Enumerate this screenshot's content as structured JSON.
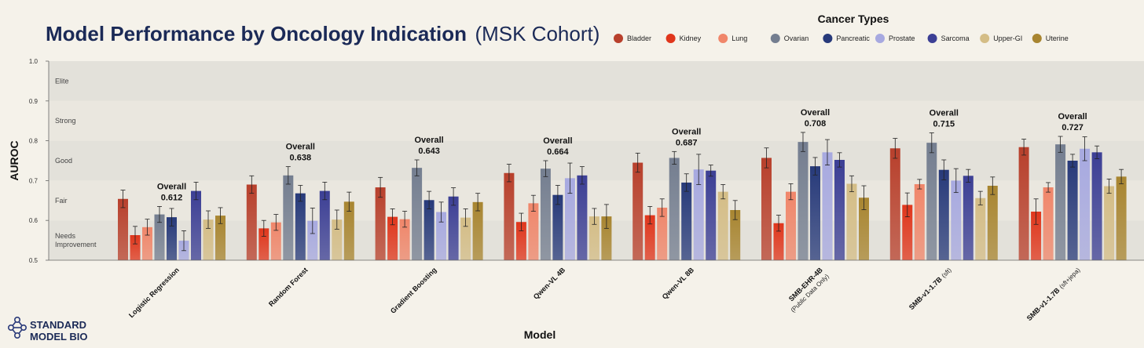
{
  "title": {
    "main": "Model Performance by Oncology Indication",
    "sub": "(MSK Cohort)"
  },
  "legend": {
    "title": "Cancer Types"
  },
  "logo": {
    "line1": "STANDARD",
    "line2": "MODEL BIO"
  },
  "chart_data": {
    "type": "bar",
    "xlabel": "Model",
    "ylabel": "AUROC",
    "ylim": [
      0.5,
      1.0
    ],
    "yticks": [
      "0.5",
      "0.6",
      "0.7",
      "0.8",
      "0.9",
      "1.0"
    ],
    "bands": [
      {
        "label": "Elite",
        "from": 0.9,
        "to": 1.0,
        "color": "#e3e1da"
      },
      {
        "label": "Strong",
        "from": 0.8,
        "to": 0.9,
        "color": "#eae7df"
      },
      {
        "label": "Good",
        "from": 0.7,
        "to": 0.8,
        "color": "#e3e1da"
      },
      {
        "label": "Fair",
        "from": 0.6,
        "to": 0.7,
        "color": "#eae7df"
      },
      {
        "label": "Needs Improvement",
        "label_lines": [
          "Needs",
          "Improvement"
        ],
        "from": 0.5,
        "to": 0.6,
        "color": "#e3e1da"
      }
    ],
    "overall_label": "Overall",
    "categories": [
      {
        "name": "Logistic Regression",
        "sub": "",
        "overall": "0.612"
      },
      {
        "name": "Random Forest",
        "sub": "",
        "overall": "0.638"
      },
      {
        "name": "Gradient Boosting",
        "sub": "",
        "overall": "0.643"
      },
      {
        "name": "Qwen-VL 4B",
        "sub": "",
        "overall": "0.664"
      },
      {
        "name": "Qwen-VL 8B",
        "sub": "",
        "overall": "0.687"
      },
      {
        "name": "SMB-EHR-4B",
        "sub": "(Public Data Only)",
        "overall": "0.708"
      },
      {
        "name": "SMB-v1-1.7B",
        "sub": "(sft)",
        "overall": "0.715"
      },
      {
        "name": "SMB-v1-1.7B",
        "sub": "(sft+jepa)",
        "overall": "0.727"
      }
    ],
    "series": [
      {
        "name": "Bladder",
        "color": "#b8402c",
        "values": [
          0.654,
          0.69,
          0.683,
          0.719,
          0.745,
          0.757,
          0.781,
          0.784
        ],
        "errors": [
          0.022,
          0.022,
          0.025,
          0.022,
          0.024,
          0.025,
          0.025,
          0.02
        ]
      },
      {
        "name": "Kidney",
        "color": "#e0361c",
        "values": [
          0.563,
          0.58,
          0.609,
          0.596,
          0.613,
          0.593,
          0.639,
          0.622
        ],
        "errors": [
          0.022,
          0.02,
          0.02,
          0.022,
          0.022,
          0.02,
          0.03,
          0.032
        ]
      },
      {
        "name": "Lung",
        "color": "#f0866a",
        "values": [
          0.583,
          0.595,
          0.603,
          0.643,
          0.632,
          0.672,
          0.691,
          0.683
        ],
        "errors": [
          0.02,
          0.02,
          0.02,
          0.02,
          0.022,
          0.02,
          0.012,
          0.012
        ]
      },
      {
        "name": "Ovarian",
        "color": "#747e90",
        "values": [
          0.615,
          0.713,
          0.732,
          0.73,
          0.757,
          0.797,
          0.795,
          0.791
        ],
        "errors": [
          0.02,
          0.022,
          0.02,
          0.02,
          0.016,
          0.024,
          0.025,
          0.02
        ]
      },
      {
        "name": "Pancreatic",
        "color": "#273a7a",
        "values": [
          0.608,
          0.668,
          0.651,
          0.664,
          0.695,
          0.736,
          0.727,
          0.75
        ],
        "errors": [
          0.022,
          0.02,
          0.022,
          0.024,
          0.022,
          0.022,
          0.025,
          0.016
        ]
      },
      {
        "name": "Prostate",
        "color": "#a7a9e0",
        "values": [
          0.549,
          0.599,
          0.621,
          0.706,
          0.728,
          0.771,
          0.7,
          0.78
        ],
        "errors": [
          0.025,
          0.032,
          0.025,
          0.038,
          0.038,
          0.032,
          0.03,
          0.03
        ]
      },
      {
        "name": "Sarcoma",
        "color": "#3c3f95",
        "values": [
          0.674,
          0.674,
          0.66,
          0.713,
          0.725,
          0.752,
          0.712,
          0.771
        ],
        "errors": [
          0.022,
          0.022,
          0.022,
          0.022,
          0.014,
          0.018,
          0.016,
          0.016
        ]
      },
      {
        "name": "Upper-GI",
        "color": "#d4bd86",
        "values": [
          0.602,
          0.602,
          0.607,
          0.61,
          0.672,
          0.692,
          0.656,
          0.686
        ],
        "errors": [
          0.022,
          0.024,
          0.022,
          0.02,
          0.018,
          0.02,
          0.017,
          0.018
        ]
      },
      {
        "name": "Uterine",
        "color": "#a88530",
        "values": [
          0.612,
          0.647,
          0.646,
          0.61,
          0.626,
          0.657,
          0.687,
          0.71
        ],
        "errors": [
          0.02,
          0.024,
          0.022,
          0.03,
          0.024,
          0.03,
          0.022,
          0.018
        ]
      }
    ]
  }
}
